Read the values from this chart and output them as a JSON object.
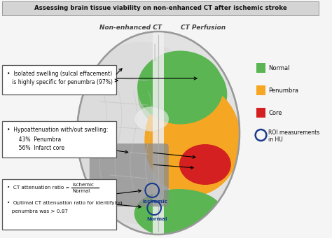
{
  "title": "Assessing brain tissue viability on non-enhanced CT after ischemic stroke",
  "title_bg": "#d4d4d4",
  "bg_color": "#f5f5f5",
  "subtitle_left": "Non-enhanced CT",
  "subtitle_right": "CT Perfusion",
  "legend_normal_color": "#5ab552",
  "legend_penumbra_color": "#f5a623",
  "legend_core_color": "#d42020",
  "legend_roi_edge": "#1a3a8c",
  "box1_bullet": "•",
  "box1_line1": "  Isolated swelling (sulcal effacement)",
  "box1_line2": "  is highly specific for penumbra (97%)",
  "box2_bullet": "•",
  "box2_line1": "  Hypoattenuation with/out swelling:",
  "box2_line2": "       43%  Penumbra",
  "box2_line3": "       56%  Infarct core",
  "box3_bullet1": "•",
  "box3_label1": "  CT attenuation ratio = ",
  "box3_frac_num": "Ischemic",
  "box3_frac_den": "Normal",
  "box3_bullet2": "•",
  "box3_label2": "  Optimal CT attenuation ratio for identifying",
  "box3_label3": "  penumbra was > 0.87",
  "normal_color": "#5ab552",
  "penumbra_color": "#f5a623",
  "core_color": "#d42020",
  "brain_fill": "#e8e8e8",
  "brain_edge": "#aaaaaa",
  "ischemic_fill": "#8c8c8c",
  "midline_color": "#cccccc",
  "sulci_color": "#bbbbbb",
  "roi_edge_color": "#1a3a8c",
  "roi_text_color": "#1a3a8c"
}
